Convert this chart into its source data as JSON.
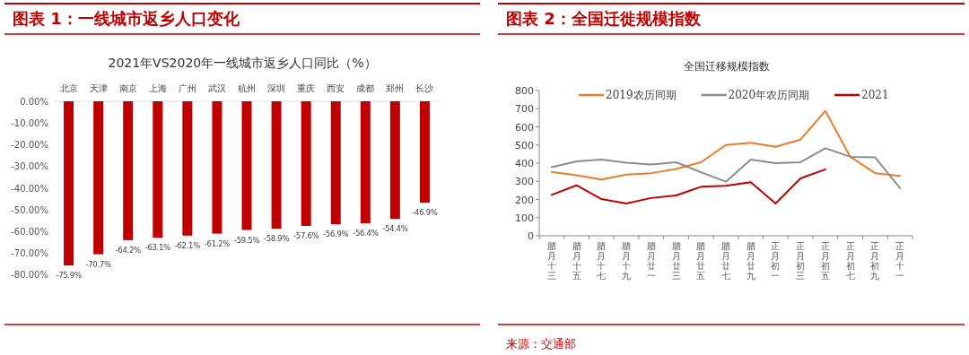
{
  "chart_data": [
    {
      "type": "bar",
      "title": "图表 1：一线城市返乡人口变化",
      "subtitle": "2021年VS2020年一线城市返乡人口同比（%）",
      "categories": [
        "北京",
        "天津",
        "南京",
        "上海",
        "广州",
        "武汉",
        "杭州",
        "深圳",
        "重庆",
        "西安",
        "成都",
        "郑州",
        "长沙"
      ],
      "values": [
        -75.9,
        -70.7,
        -64.2,
        -63.1,
        -62.1,
        -61.2,
        -59.5,
        -58.9,
        -57.6,
        -56.9,
        -56.4,
        -54.4,
        -46.9
      ],
      "value_labels": [
        "-75.9%",
        "-70.7%",
        "-64.2%",
        "-63.1%",
        "-62.1%",
        "-61.2%",
        "-59.5%",
        "-58.9%",
        "-57.6%",
        "-56.9%",
        "-56.4%",
        "-54.4%",
        "-46.9%"
      ],
      "color": "#c00000",
      "ylim": [
        -80,
        0
      ],
      "yticks": [
        {
          "value": 0,
          "label": "0.00%"
        },
        {
          "value": -10,
          "label": "-10.00%"
        },
        {
          "value": -20,
          "label": "-20.00%"
        },
        {
          "value": -30,
          "label": "-30.00%"
        },
        {
          "value": -40,
          "label": "-40.00%"
        },
        {
          "value": -50,
          "label": "-50.00%"
        },
        {
          "value": -60,
          "label": "-60.00%"
        },
        {
          "value": -70,
          "label": "-70.00%"
        },
        {
          "value": -80,
          "label": "-80.00%"
        }
      ],
      "grid": false
    },
    {
      "type": "line",
      "title": "图表 2：全国迁徙规模指数",
      "subtitle": "全国迁移规模指数",
      "categories": [
        "腊月十三",
        "腊月十五",
        "腊月十七",
        "腊月十九",
        "腊月廿一",
        "腊月廿三",
        "腊月廿五",
        "腊月廿七",
        "腊月廿九",
        "正月初一",
        "正月初三",
        "正月初五",
        "正月初七",
        "正月初九",
        "正月十一"
      ],
      "series": [
        {
          "name": "2019农历同期",
          "color": "#e87d2a",
          "values": [
            352,
            333,
            310,
            337,
            345,
            368,
            405,
            500,
            512,
            490,
            530,
            688,
            435,
            345,
            330
          ]
        },
        {
          "name": "2020年农历同期",
          "color": "#8c8c8c",
          "values": [
            378,
            410,
            420,
            403,
            393,
            405,
            350,
            298,
            420,
            400,
            405,
            482,
            435,
            432,
            262
          ]
        },
        {
          "name": "2021",
          "color": "#c00000",
          "values": [
            225,
            278,
            202,
            178,
            208,
            222,
            270,
            275,
            295,
            178,
            316,
            366,
            null,
            null,
            null
          ]
        }
      ],
      "ylim": [
        0,
        800
      ],
      "yticks": [
        0,
        100,
        200,
        300,
        400,
        500,
        600,
        700,
        800
      ],
      "legend": "top",
      "grid": false,
      "marker": "none",
      "line_style": "solid",
      "annotations": [
        "来源：交通部"
      ]
    }
  ]
}
